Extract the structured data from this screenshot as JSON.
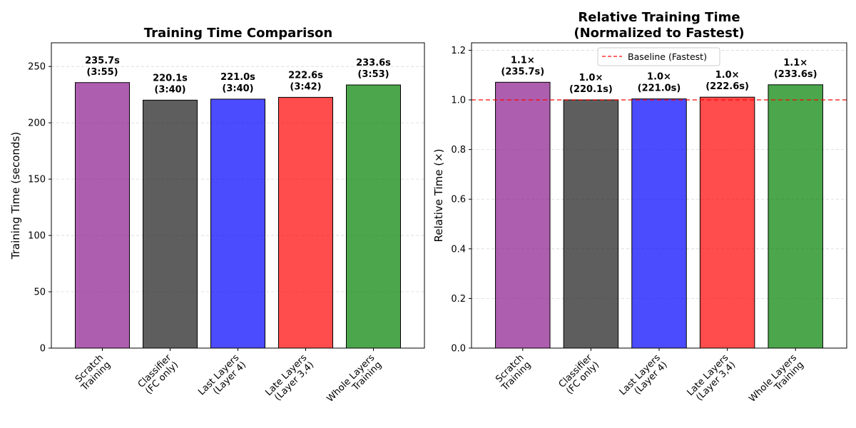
{
  "chart_data": [
    {
      "type": "bar",
      "title": "Training Time Comparison",
      "xlabel": "",
      "ylabel": "Training Time (seconds)",
      "categories": [
        [
          "Scratch",
          "Training"
        ],
        [
          "Classifier",
          "(FC only)"
        ],
        [
          "Last Layers",
          "(Layer 4)"
        ],
        [
          "Late Layers",
          "(Layer 3,4)"
        ],
        [
          "Whole Layers",
          "Training"
        ]
      ],
      "values": [
        235.7,
        220.1,
        221.0,
        222.6,
        233.6
      ],
      "labels": [
        [
          "235.7s",
          "(3:55)"
        ],
        [
          "220.1s",
          "(3:40)"
        ],
        [
          "221.0s",
          "(3:40)"
        ],
        [
          "222.6s",
          "(3:42)"
        ],
        [
          "233.6s",
          "(3:53)"
        ]
      ],
      "colors": [
        "#8B1A8B",
        "#1a1a1a",
        "#0000FF",
        "#FF0000",
        "#008000"
      ],
      "ylim": [
        0,
        271
      ],
      "yticks": [
        0,
        50,
        100,
        150,
        200,
        250
      ],
      "ytick_labels": [
        "0",
        "50",
        "100",
        "150",
        "200",
        "250"
      ],
      "grid": true
    },
    {
      "type": "bar",
      "title": [
        "Relative Training Time",
        "(Normalized to Fastest)"
      ],
      "xlabel": "",
      "ylabel": "Relative Time (×)",
      "categories": [
        [
          "Scratch",
          "Training"
        ],
        [
          "Classifier",
          "(FC only)"
        ],
        [
          "Last Layers",
          "(Layer 4)"
        ],
        [
          "Late Layers",
          "(Layer 3,4)"
        ],
        [
          "Whole Layers",
          "Training"
        ]
      ],
      "values": [
        1.071,
        1.0,
        1.004,
        1.011,
        1.061
      ],
      "labels": [
        [
          "1.1×",
          "(235.7s)"
        ],
        [
          "1.0×",
          "(220.1s)"
        ],
        [
          "1.0×",
          "(221.0s)"
        ],
        [
          "1.0×",
          "(222.6s)"
        ],
        [
          "1.1×",
          "(233.6s)"
        ]
      ],
      "colors": [
        "#8B1A8B",
        "#1a1a1a",
        "#0000FF",
        "#FF0000",
        "#008000"
      ],
      "ylim": [
        0,
        1.23
      ],
      "yticks": [
        0,
        0.2,
        0.4,
        0.6,
        0.8,
        1.0,
        1.2
      ],
      "ytick_labels": [
        "0.0",
        "0.2",
        "0.4",
        "0.6",
        "0.8",
        "1.0",
        "1.2"
      ],
      "baseline": {
        "value": 1.0,
        "label": "Baseline (Fastest)",
        "color": "#FF0000"
      },
      "legend_position": "top-center",
      "grid": true
    }
  ]
}
